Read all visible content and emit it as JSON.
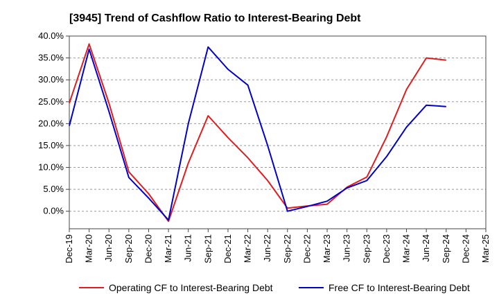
{
  "chart_data": {
    "type": "line",
    "title": "[3945]  Trend of Cashflow Ratio to Interest-Bearing Debt",
    "xlabel": "",
    "ylabel": "",
    "x": [
      "Dec-19",
      "Mar-20",
      "Jun-20",
      "Sep-20",
      "Dec-20",
      "Mar-21",
      "Jun-21",
      "Sep-21",
      "Dec-21",
      "Mar-22",
      "Jun-22",
      "Sep-22",
      "Dec-22",
      "Mar-23",
      "Jun-23",
      "Sep-23",
      "Dec-23",
      "Mar-24",
      "Jun-24",
      "Sep-24",
      "Dec-24",
      "Mar-25"
    ],
    "ylim": [
      -4.0,
      40.0
    ],
    "yticks": [
      0.0,
      5.0,
      10.0,
      15.0,
      20.0,
      25.0,
      30.0,
      35.0,
      40.0
    ],
    "ytick_labels": [
      "0.0%",
      "5.0%",
      "10.0%",
      "15.0%",
      "20.0%",
      "25.0%",
      "30.0%",
      "35.0%",
      "40.0%"
    ],
    "grid": "horizontal-dashed",
    "legend_position": "bottom",
    "series": [
      {
        "name": "Operating CF to Interest-Bearing Debt",
        "color": "#e41a1c",
        "values": [
          24.7,
          38.2,
          24.7,
          9.0,
          4.0,
          -2.3,
          11.0,
          21.8,
          16.8,
          12.2,
          7.0,
          0.7,
          1.2,
          1.6,
          5.5,
          7.8,
          17.0,
          27.8,
          35.0,
          34.5,
          null,
          null
        ]
      },
      {
        "name": "Free CF to Interest-Bearing Debt",
        "color": "#0000cc",
        "values": [
          19.5,
          37.0,
          22.8,
          7.7,
          3.0,
          -2.0,
          20.0,
          37.5,
          32.4,
          28.8,
          15.0,
          0.0,
          1.1,
          2.3,
          5.3,
          7.0,
          12.5,
          19.2,
          24.2,
          23.9,
          null,
          null
        ]
      }
    ]
  }
}
